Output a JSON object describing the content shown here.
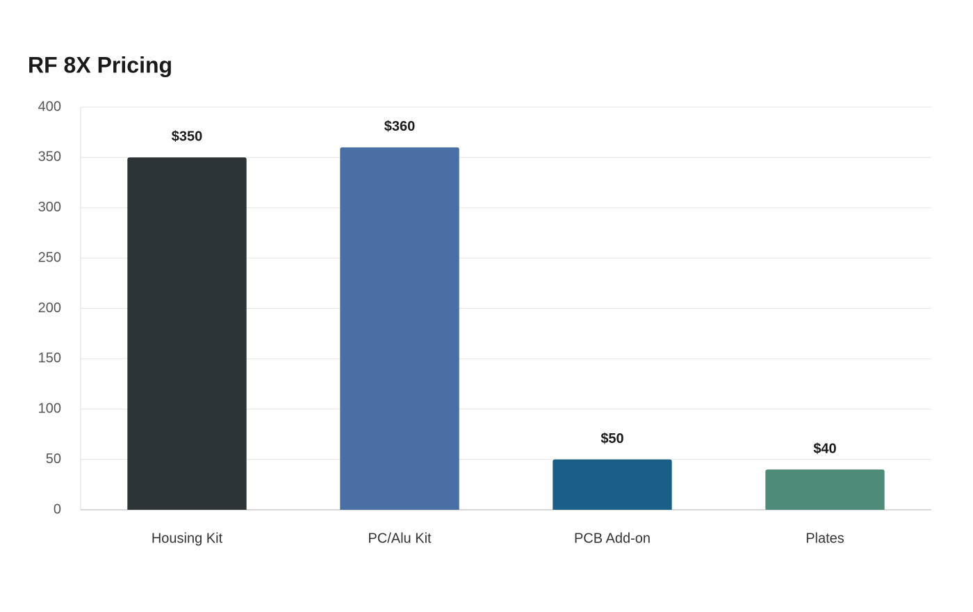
{
  "chart_data": {
    "type": "bar",
    "title": "RF 8X Pricing",
    "categories": [
      "Housing Kit",
      "PC/Alu Kit",
      "PCB Add-on",
      "Plates"
    ],
    "values": [
      350,
      360,
      50,
      40
    ],
    "value_labels": [
      "$350",
      "$360",
      "$50",
      "$40"
    ],
    "colors": [
      "#2d3436",
      "#4a6fa5",
      "#1a5f87",
      "#4e8b78"
    ],
    "ylim": [
      0,
      400
    ],
    "yticks": [
      0,
      50,
      100,
      150,
      200,
      250,
      300,
      350,
      400
    ],
    "grid": true
  }
}
